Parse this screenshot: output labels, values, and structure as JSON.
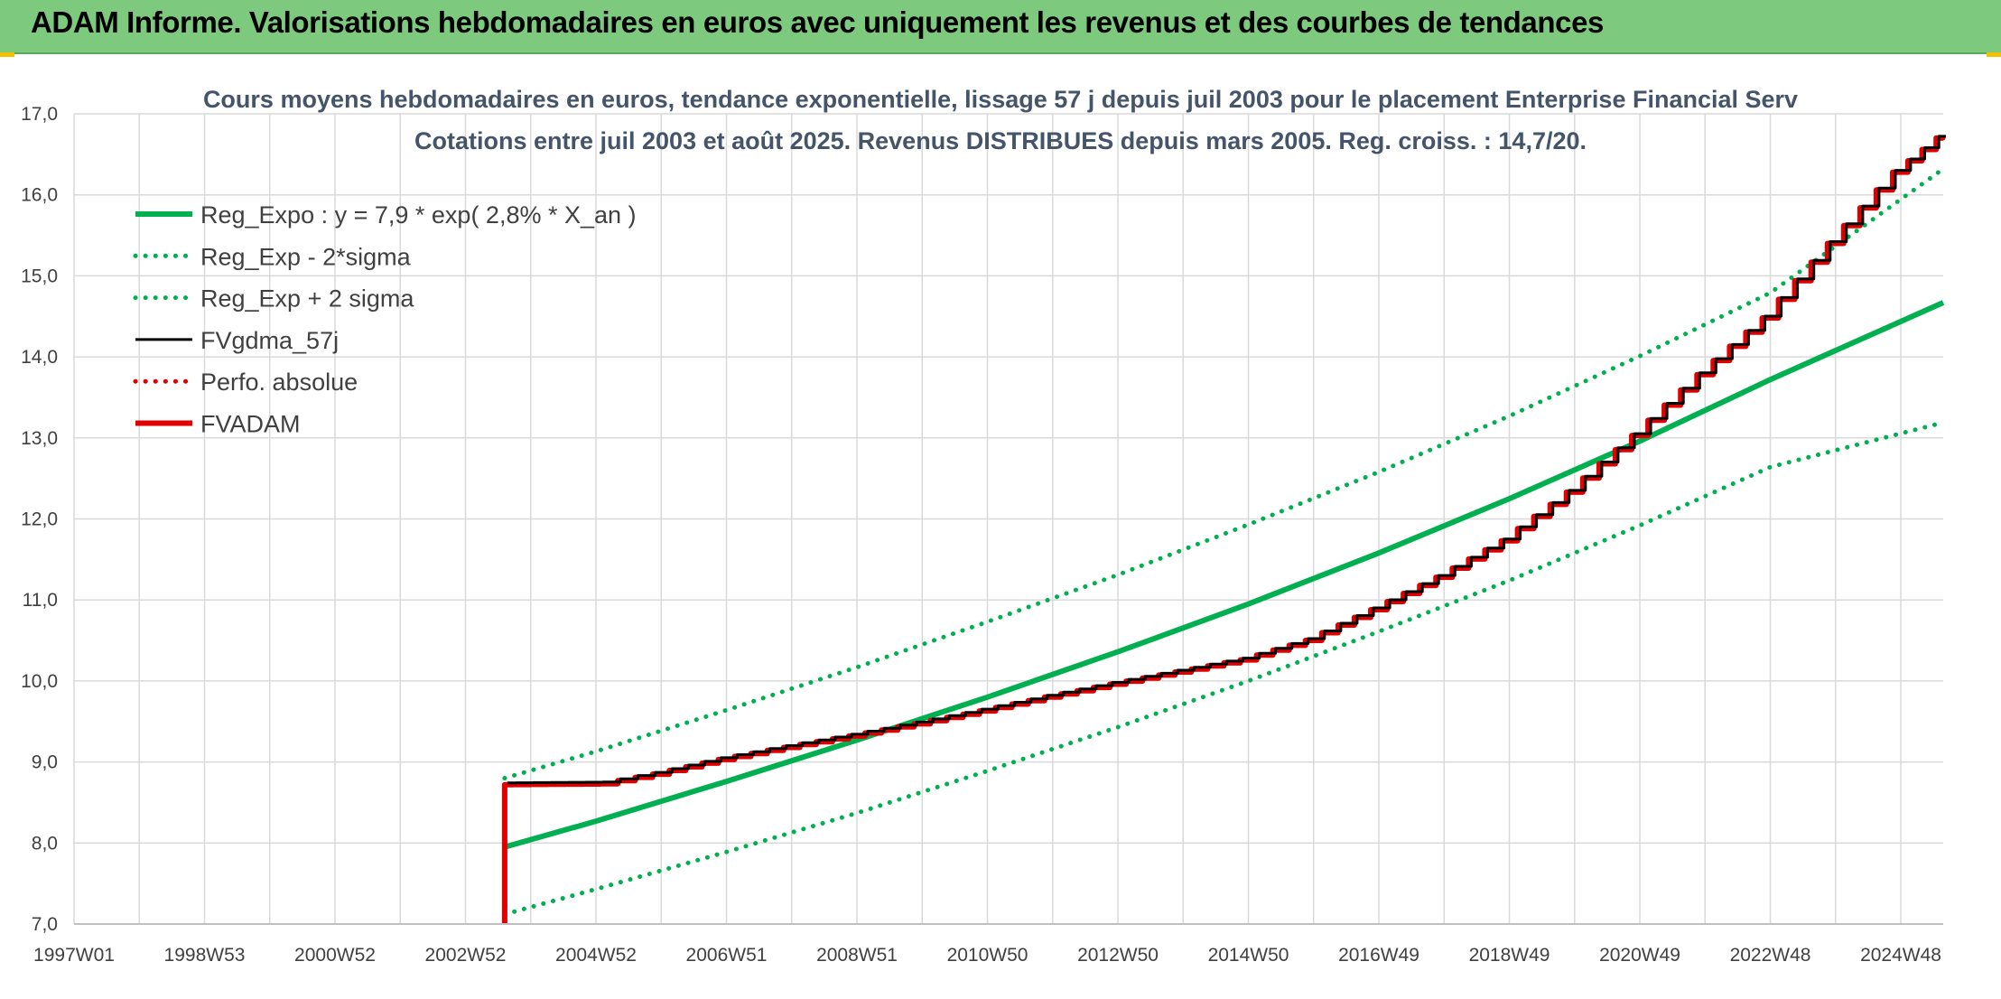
{
  "header": {
    "title": "ADAM Informe. Valorisations hebdomadaires en euros avec uniquement les revenus et des courbes de tendances"
  },
  "colors": {
    "header_bg": "#7dc97d",
    "regression": "#00b050",
    "fv_gdma": "#000000",
    "perfo": "#e00000",
    "fvadam": "#e00000",
    "grid": "#d9d9d9"
  },
  "chart_data": {
    "type": "line",
    "title_lines": [
      "Cours moyens hebdomadaires en euros, tendance exponentielle, lissage 57 j depuis juil 2003 pour le placement Enterprise Financial Serv",
      "Cotations entre juil 2003  et août 2025. Revenus DISTRIBUES depuis mars 2005. Reg. croiss. : 14,7/20."
    ],
    "xlabel": "",
    "ylabel": "",
    "ylim": [
      7.0,
      17.0
    ],
    "y_ticks": [
      "7,0",
      "8,0",
      "9,0",
      "10,0",
      "11,0",
      "12,0",
      "13,0",
      "14,0",
      "15,0",
      "16,0",
      "17,0"
    ],
    "x_range_years": [
      1997.0,
      2025.65
    ],
    "x_tick_labels": [
      "1997W01",
      "1998W53",
      "2000W52",
      "2002W52",
      "2004W52",
      "2006W51",
      "2008W51",
      "2010W50",
      "2012W50",
      "2014W50",
      "2016W49",
      "2018W49",
      "2020W49",
      "2022W48",
      "2024W48"
    ],
    "x_tick_years": [
      1997.0,
      1999.0,
      2001.0,
      2003.0,
      2005.0,
      2007.0,
      2009.0,
      2011.0,
      2013.0,
      2015.0,
      2017.0,
      2019.0,
      2021.0,
      2023.0,
      2025.0
    ],
    "grid": true,
    "legend_position": "top-left",
    "series": [
      {
        "name": "Reg_Expo : y = 7,9 * exp( 2,8% *  X_an )",
        "style": "solid-thick",
        "color": "#00b050",
        "x": [
          2003.6,
          2005,
          2007,
          2009,
          2011,
          2013,
          2015,
          2017,
          2019,
          2021,
          2023,
          2025.65
        ],
        "y": [
          7.95,
          8.27,
          8.76,
          9.27,
          9.8,
          10.36,
          10.95,
          11.58,
          12.25,
          12.96,
          13.72,
          14.67
        ]
      },
      {
        "name": "Reg_Exp - 2*sigma",
        "style": "dotted",
        "color": "#00b050",
        "x": [
          2003.6,
          2005,
          2007,
          2009,
          2011,
          2013,
          2015,
          2017,
          2019,
          2021,
          2023,
          2025.65
        ],
        "y": [
          7.12,
          7.43,
          7.89,
          8.37,
          8.89,
          9.43,
          10.0,
          10.61,
          11.24,
          11.92,
          12.64,
          13.19
        ]
      },
      {
        "name": "Reg_Exp + 2 sigma",
        "style": "dotted",
        "color": "#00b050",
        "x": [
          2003.6,
          2005,
          2007,
          2009,
          2011,
          2013,
          2015,
          2017,
          2019,
          2021,
          2023,
          2025.65
        ],
        "y": [
          8.8,
          9.13,
          9.64,
          10.17,
          10.73,
          11.31,
          11.93,
          12.58,
          13.27,
          14.01,
          14.79,
          16.32
        ]
      },
      {
        "name": "FVgdma_57j",
        "style": "solid",
        "color": "#000000",
        "x": [
          2003.6,
          2005.2,
          2006,
          2007,
          2008,
          2009,
          2010,
          2011,
          2012,
          2013,
          2014,
          2015,
          2016,
          2017,
          2018,
          2019,
          2020,
          2021,
          2022,
          2023,
          2024,
          2025,
          2025.65
        ],
        "y": [
          8.72,
          8.73,
          8.85,
          9.03,
          9.18,
          9.32,
          9.47,
          9.63,
          9.8,
          9.96,
          10.11,
          10.26,
          10.5,
          10.88,
          11.28,
          11.73,
          12.33,
          13.03,
          13.78,
          14.48,
          15.4,
          16.28,
          16.7
        ]
      },
      {
        "name": "Perfo. absolue",
        "style": "dotted",
        "color": "#e00000",
        "x": [
          2003.6,
          2005.2,
          2006,
          2007,
          2008,
          2009,
          2010,
          2011,
          2012,
          2013,
          2014,
          2015,
          2016,
          2017,
          2018,
          2019,
          2020,
          2021,
          2022,
          2023,
          2024,
          2025,
          2025.65
        ],
        "y": [
          8.72,
          8.73,
          8.85,
          9.03,
          9.18,
          9.32,
          9.47,
          9.63,
          9.8,
          9.96,
          10.11,
          10.26,
          10.5,
          10.88,
          11.28,
          11.73,
          12.33,
          13.03,
          13.78,
          14.48,
          15.4,
          16.28,
          16.7
        ]
      },
      {
        "name": "FVADAM",
        "style": "solid-thick",
        "color": "#e00000",
        "x": [
          2003.6,
          2003.6,
          2005.2,
          2006,
          2007,
          2008,
          2009,
          2010,
          2011,
          2012,
          2013,
          2014,
          2015,
          2016,
          2017,
          2018,
          2019,
          2020,
          2021,
          2022,
          2023,
          2024,
          2025,
          2025.65
        ],
        "y": [
          7.0,
          8.72,
          8.73,
          8.85,
          9.03,
          9.18,
          9.32,
          9.47,
          9.63,
          9.8,
          9.96,
          10.11,
          10.26,
          10.5,
          10.88,
          11.28,
          11.73,
          12.33,
          13.03,
          13.78,
          14.48,
          15.4,
          16.28,
          16.7
        ]
      }
    ]
  }
}
